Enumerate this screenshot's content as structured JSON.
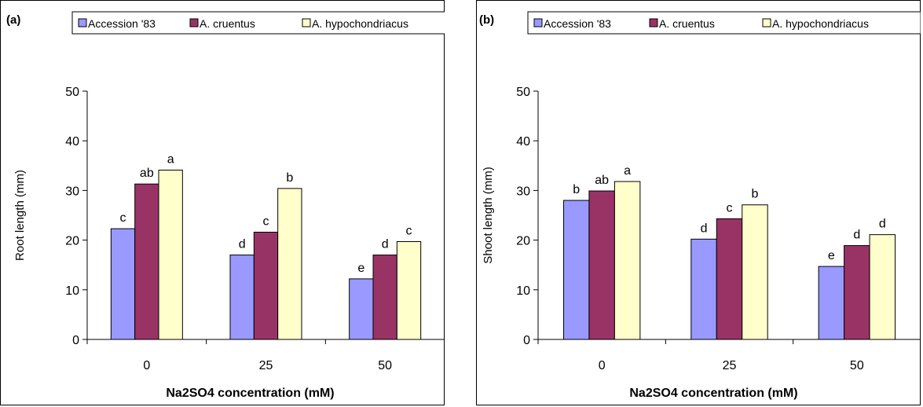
{
  "panels": [
    {
      "panel_label": "(a)",
      "chart_data": {
        "type": "bar",
        "categories": [
          "0",
          "25",
          "50"
        ],
        "series": [
          {
            "name": "Accession '83",
            "values": [
              22.3,
              17.0,
              12.2
            ],
            "letters": [
              "c",
              "d",
              "e"
            ]
          },
          {
            "name": "A. cruentus",
            "values": [
              31.3,
              21.6,
              17.0
            ],
            "letters": [
              "ab",
              "c",
              "d"
            ]
          },
          {
            "name": "A. hypochondriacus",
            "values": [
              34.1,
              30.4,
              19.7
            ],
            "letters": [
              "a",
              "b",
              "c"
            ]
          }
        ],
        "xlabel": "Na2SO4 concentration (mM)",
        "ylabel": "Root length (mm)",
        "ylim": [
          0,
          50
        ],
        "yticks": [
          "0",
          "10",
          "20",
          "30",
          "40",
          "50"
        ],
        "grid": false,
        "legend_position": "top"
      }
    },
    {
      "panel_label": "(b)",
      "chart_data": {
        "type": "bar",
        "categories": [
          "0",
          "25",
          "50"
        ],
        "series": [
          {
            "name": "Accession '83",
            "values": [
              28.0,
              20.2,
              14.7
            ],
            "letters": [
              "b",
              "d",
              "e"
            ]
          },
          {
            "name": "A. cruentus",
            "values": [
              29.9,
              24.3,
              18.9
            ],
            "letters": [
              "ab",
              "c",
              "d"
            ]
          },
          {
            "name": "A. hypochondriacus",
            "values": [
              31.8,
              27.1,
              21.1
            ],
            "letters": [
              "a",
              "b",
              "d"
            ]
          }
        ],
        "xlabel": "Na2SO4 concentration (mM)",
        "ylabel": "Shoot length (mm)",
        "ylim": [
          0,
          50
        ],
        "yticks": [
          "0",
          "10",
          "20",
          "30",
          "40",
          "50"
        ],
        "grid": false,
        "legend_position": "top"
      }
    }
  ],
  "colors": {
    "series": [
      "#9999ff",
      "#993366",
      "#ffffcc"
    ],
    "bar_outline": "#000000",
    "frame": "#000000"
  }
}
